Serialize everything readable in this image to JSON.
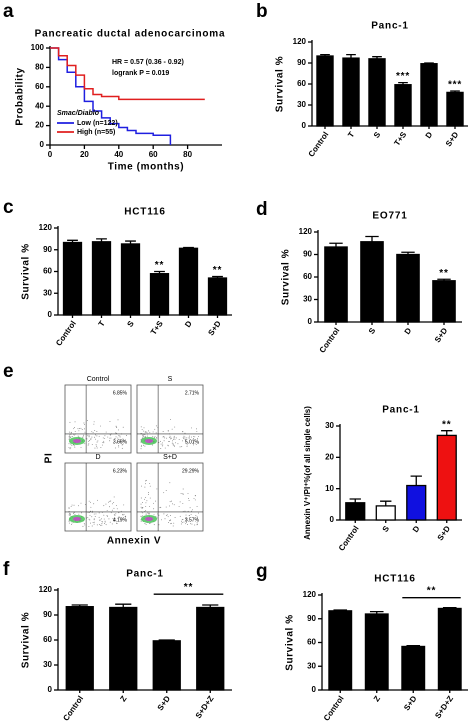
{
  "chart_data": [
    {
      "type": "line",
      "panel": "a",
      "title": "Pancreatic ductal adenocarcinoma",
      "annotations": [
        "HR = 0.57 (0.36 - 0.92)",
        "logrank P = 0.019"
      ],
      "x_label": "Time (months)",
      "y_label": "Probability",
      "legend_title": "Smac/Diablo",
      "step": true,
      "x": [
        0,
        5,
        10,
        15,
        20,
        25,
        30,
        35,
        40,
        45,
        50,
        55,
        60,
        65,
        70,
        75,
        80,
        85,
        90
      ],
      "series": [
        {
          "name": "Low (n=122)",
          "color": "#1f1fe0",
          "values": [
            100,
            88,
            75,
            60,
            45,
            35,
            28,
            22,
            18,
            15,
            12,
            12,
            10,
            10,
            0,
            null,
            null,
            null,
            null
          ]
        },
        {
          "name": "High (n=55)",
          "color": "#e01f1f",
          "values": [
            100,
            92,
            82,
            72,
            58,
            52,
            50,
            50,
            47,
            47,
            47,
            47,
            47,
            47,
            47,
            47,
            47,
            47,
            47
          ]
        }
      ],
      "xlim": [
        0,
        100
      ],
      "ylim": [
        0,
        100
      ],
      "xticks": [
        0,
        20,
        40,
        60,
        80
      ],
      "yticks": [
        0,
        20,
        40,
        60,
        80,
        100
      ]
    },
    {
      "type": "bar",
      "panel": "b",
      "title": "Panc-1",
      "y_label": "Survival %",
      "color": "#000000",
      "categories": [
        "Control",
        "T",
        "S",
        "T+S",
        "D",
        "S+D"
      ],
      "values": [
        100,
        97,
        96,
        59,
        89,
        48
      ],
      "errors": [
        2,
        5,
        3,
        3,
        1,
        2
      ],
      "annotations": [
        null,
        null,
        null,
        "***",
        null,
        "***"
      ],
      "ylim": [
        0,
        120
      ],
      "yticks": [
        0,
        30,
        60,
        90,
        120
      ]
    },
    {
      "type": "bar",
      "panel": "c",
      "title": "HCT116",
      "y_label": "Survival %",
      "color": "#000000",
      "categories": [
        "Control",
        "T",
        "S",
        "T+S",
        "D",
        "S+D"
      ],
      "values": [
        100,
        101,
        98,
        57,
        92,
        51
      ],
      "errors": [
        3,
        4,
        4,
        3,
        1,
        2
      ],
      "annotations": [
        null,
        null,
        null,
        "**",
        null,
        "**"
      ],
      "ylim": [
        0,
        120
      ],
      "yticks": [
        0,
        30,
        60,
        90,
        120
      ]
    },
    {
      "type": "bar",
      "panel": "d",
      "title": "EO771",
      "y_label": "Survival %",
      "color": "#000000",
      "categories": [
        "Control",
        "S",
        "D",
        "S+D"
      ],
      "values": [
        100,
        107,
        90,
        55
      ],
      "errors": [
        5,
        7,
        3,
        2
      ],
      "annotations": [
        null,
        null,
        null,
        "**"
      ],
      "ylim": [
        0,
        120
      ],
      "yticks": [
        0,
        30,
        60,
        90,
        120
      ]
    },
    {
      "type": "flow",
      "panel": "e",
      "y_label": "PI",
      "x_label": "Annexin V",
      "plots": [
        {
          "label": "Control",
          "upper_right": "6.85%",
          "lower_right": "3.66%"
        },
        {
          "label": "S",
          "upper_right": "2.71%",
          "lower_right": "5.01%"
        },
        {
          "label": "D",
          "upper_right": "6.23%",
          "lower_right": "4.19%"
        },
        {
          "label": "S+D",
          "upper_right": "29.29%",
          "lower_right": "3.57%"
        }
      ]
    },
    {
      "type": "bar",
      "title": "Panc-1",
      "y_label": "Annexin V⁺/PI⁺%(of all single cells)",
      "categories": [
        "Control",
        "S",
        "D",
        "S+D"
      ],
      "values": [
        5.5,
        4.5,
        11,
        27
      ],
      "errors": [
        1.2,
        1.5,
        3,
        1.5
      ],
      "colors": [
        "#000000",
        "#ffffff",
        "#1010e0",
        "#ee1111"
      ],
      "annotations": [
        null,
        null,
        null,
        "**"
      ],
      "ylim": [
        0,
        30
      ],
      "yticks": [
        0,
        10,
        20,
        30
      ]
    },
    {
      "type": "bar",
      "panel": "f",
      "title": "Panc-1",
      "y_label": "Survival %",
      "color": "#000000",
      "categories": [
        "Control",
        "Z",
        "S+D",
        "S+D+Z"
      ],
      "values": [
        100,
        99,
        59,
        99
      ],
      "errors": [
        2,
        4,
        1,
        3
      ],
      "bracket": {
        "categories": [
          "S+D",
          "S+D+Z"
        ],
        "label": "**"
      },
      "ylim": [
        0,
        120
      ],
      "yticks": [
        0,
        30,
        60,
        90,
        120
      ]
    },
    {
      "type": "bar",
      "panel": "g",
      "title": "HCT116",
      "y_label": "Survival %",
      "color": "#000000",
      "categories": [
        "Control",
        "Z",
        "S+D",
        "S+D+Z"
      ],
      "values": [
        100,
        96,
        55,
        103
      ],
      "errors": [
        1,
        3,
        1,
        1
      ],
      "bracket": {
        "categories": [
          "S+D",
          "S+D+Z"
        ],
        "label": "**"
      },
      "ylim": [
        0,
        120
      ],
      "yticks": [
        0,
        30,
        60,
        90,
        120
      ]
    }
  ]
}
